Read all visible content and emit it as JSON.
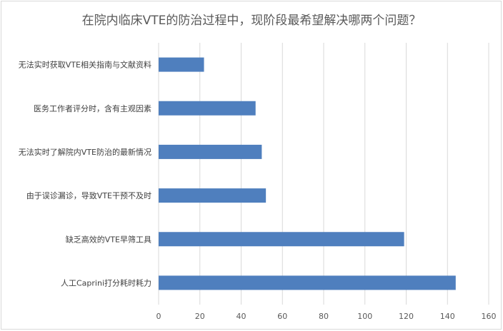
{
  "chart_data": {
    "type": "bar",
    "orientation": "horizontal",
    "title": "在院内临床VTE的防治过程中，现阶段最希望解决哪两个问题？",
    "categories": [
      "无法实时获取VTE相关指南与文献资料",
      "医务工作者评分时，含有主观因素",
      "无法实时了解院内VTE防治的最新情况",
      "由于误诊漏诊，导致VTE干预不及时",
      "缺乏高效的VTE早筛工具",
      "人工Caprini打分耗时耗力"
    ],
    "values": [
      22,
      47,
      50,
      52,
      119,
      144
    ],
    "xlim": [
      0,
      160
    ],
    "xticks": [
      0,
      20,
      40,
      60,
      80,
      100,
      120,
      140,
      160
    ],
    "grid": true,
    "legend": "none",
    "bar_color": "#4f7fbe",
    "grid_color": "#d9d9d9"
  }
}
